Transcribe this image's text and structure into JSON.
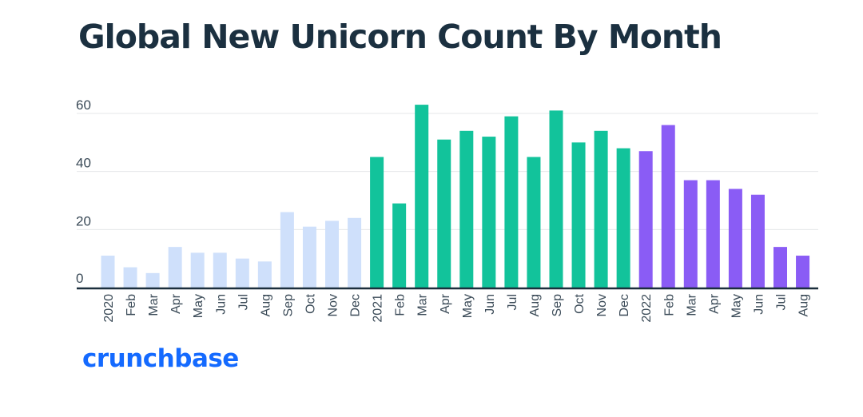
{
  "chart_data": {
    "type": "bar",
    "title": "Global New Unicorn Count By Month",
    "xlabel": "",
    "ylabel": "",
    "ylim": [
      0,
      63
    ],
    "yticks": [
      0,
      20,
      40,
      60
    ],
    "grid": true,
    "categories": [
      "2020",
      "Feb",
      "Mar",
      "Apr",
      "May",
      "Jun",
      "Jul",
      "Aug",
      "Sep",
      "Oct",
      "Nov",
      "Dec",
      "2021",
      "Feb",
      "Mar",
      "Apr",
      "May",
      "Jun",
      "Jul",
      "Aug",
      "Sep",
      "Oct",
      "Nov",
      "Dec",
      "2022",
      "Feb",
      "Mar",
      "Apr",
      "May",
      "Jun",
      "Jul",
      "Aug"
    ],
    "values": [
      11,
      7,
      5,
      14,
      12,
      12,
      10,
      9,
      26,
      21,
      23,
      24,
      45,
      29,
      63,
      51,
      54,
      52,
      59,
      45,
      61,
      50,
      54,
      48,
      47,
      56,
      37,
      37,
      34,
      32,
      14,
      11
    ],
    "bar_colors": {
      "2020": "#cfe0fb",
      "2021": "#12c39b",
      "2022": "#8a5cf5"
    },
    "grid_color": "#e4e7ea",
    "axis_color": "#1b2e3c"
  },
  "brand": {
    "logo_text": "crunchbase",
    "logo_color": "#146aff"
  }
}
